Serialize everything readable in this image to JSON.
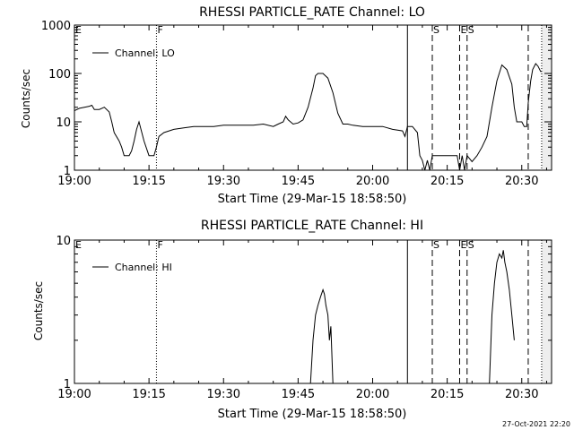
{
  "footer": {
    "timestamp": "27-Oct-2021 22:20"
  },
  "chart_data": [
    {
      "type": "line",
      "title": "RHESSI PARTICLE_RATE Channel: LO",
      "xlabel": "Start Time (29-Mar-15 18:58:50)",
      "ylabel": "Counts/sec",
      "yscale": "log",
      "ylim": [
        1,
        1000
      ],
      "xlim": [
        "19:00",
        "20:36"
      ],
      "ytick_labels": [
        "1",
        "10",
        "100",
        "1000"
      ],
      "yticks": [
        1,
        10,
        100,
        1000
      ],
      "xtick_labels": [
        "19:00",
        "19:15",
        "19:30",
        "19:45",
        "20:00",
        "20:15",
        "20:30"
      ],
      "xticks_min": [
        0,
        15,
        30,
        45,
        60,
        75,
        90
      ],
      "legend": {
        "position": "top-left",
        "entries": [
          "Channel: LO"
        ]
      },
      "grid": false,
      "markers": [
        {
          "label": "E",
          "x_min": 0,
          "style": "none"
        },
        {
          "label": "F",
          "x_min": 16.5,
          "style": "dotted"
        },
        {
          "label": "",
          "x_min": 67,
          "style": "solid"
        },
        {
          "label": "S",
          "x_min": 72,
          "style": "dashed"
        },
        {
          "label": "E",
          "x_min": 77.5,
          "style": "dashed"
        },
        {
          "label": "S",
          "x_min": 79,
          "style": "dashed"
        },
        {
          "label": "",
          "x_min": 91.3,
          "style": "dashed"
        },
        {
          "label": "",
          "x_min": 94,
          "style": "dotted"
        }
      ],
      "shade_from_min": 94,
      "series": [
        {
          "x_min": [
            0,
            1,
            2,
            3,
            3.5,
            4,
            5,
            6,
            7,
            7.5,
            8,
            9,
            9.5,
            10,
            11,
            11.5,
            12,
            12.5,
            13,
            14,
            15,
            16,
            16.5,
            17,
            18,
            20,
            22,
            24,
            26,
            28,
            30,
            32,
            34,
            36,
            38,
            40,
            41,
            42,
            42.5,
            43,
            44,
            45,
            46,
            47,
            48,
            48.5,
            49,
            50,
            51,
            52,
            53,
            54,
            55,
            56,
            58,
            60,
            62,
            64,
            66,
            66.5,
            67,
            68,
            69,
            69.5,
            70,
            70.5,
            71,
            71.5,
            72,
            73,
            74,
            75,
            76,
            77,
            77.5,
            78,
            78.5,
            79,
            80,
            81,
            82,
            83,
            84,
            85,
            86,
            87,
            88,
            88.5,
            89,
            90,
            90.5,
            91,
            91.3,
            91.8,
            92.2,
            92.8,
            93.3,
            93.8,
            94
          ],
          "y": [
            17,
            19,
            20,
            21,
            22,
            18,
            18,
            20,
            16,
            10,
            6,
            4,
            3,
            2,
            2,
            2.5,
            4,
            7,
            10,
            4,
            2,
            2,
            3,
            5,
            6,
            7,
            7.5,
            8,
            8,
            8,
            8.5,
            8.5,
            8.5,
            8.5,
            9,
            8,
            9,
            10,
            13,
            11,
            9,
            9.5,
            11,
            20,
            50,
            90,
            100,
            100,
            80,
            40,
            15,
            9,
            9,
            8.5,
            8,
            8,
            8,
            7,
            6.5,
            5,
            8,
            8,
            6,
            2,
            1.6,
            1,
            1.6,
            1,
            2,
            2,
            2,
            2,
            2,
            2,
            1,
            2,
            1,
            2,
            1.5,
            2,
            3,
            5,
            20,
            70,
            150,
            120,
            60,
            20,
            10,
            10,
            8,
            8,
            25,
            70,
            120,
            160,
            140,
            110,
            110
          ]
        }
      ]
    },
    {
      "type": "line",
      "title": "RHESSI PARTICLE_RATE Channel: HI",
      "xlabel": "Start Time (29-Mar-15 18:58:50)",
      "ylabel": "Counts/sec",
      "yscale": "log",
      "ylim": [
        1,
        10
      ],
      "xlim": [
        "19:00",
        "20:36"
      ],
      "ytick_labels": [
        "1",
        "10"
      ],
      "yticks": [
        1,
        10
      ],
      "xtick_labels": [
        "19:00",
        "19:15",
        "19:30",
        "19:45",
        "20:00",
        "20:15",
        "20:30"
      ],
      "xticks_min": [
        0,
        15,
        30,
        45,
        60,
        75,
        90
      ],
      "legend": {
        "position": "top-left",
        "entries": [
          "Channel: HI"
        ]
      },
      "grid": false,
      "markers": [
        {
          "label": "E",
          "x_min": 0,
          "style": "none"
        },
        {
          "label": "F",
          "x_min": 16.5,
          "style": "dotted"
        },
        {
          "label": "",
          "x_min": 67,
          "style": "solid"
        },
        {
          "label": "S",
          "x_min": 72,
          "style": "dashed"
        },
        {
          "label": "E",
          "x_min": 77.5,
          "style": "dashed"
        },
        {
          "label": "S",
          "x_min": 79,
          "style": "dashed"
        },
        {
          "label": "",
          "x_min": 91.3,
          "style": "dashed"
        },
        {
          "label": "",
          "x_min": 94,
          "style": "dotted"
        }
      ],
      "shade_from_min": 94,
      "series": [
        {
          "segments": [
            {
              "x_min": [
                47.5,
                48,
                48.5,
                49,
                49.5,
                50,
                50.3,
                50.6,
                51,
                51.3,
                51.6,
                52
              ],
              "y": [
                1,
                2,
                3,
                3.5,
                4,
                4.5,
                4.2,
                3.5,
                3,
                2,
                2.5,
                1
              ]
            },
            {
              "x_min": [
                83.5,
                84,
                84.5,
                85,
                85.5,
                86,
                86.3,
                86.6,
                87,
                87.5,
                88,
                88.5
              ],
              "y": [
                1,
                3,
                5,
                7,
                8,
                7.5,
                8.5,
                7,
                6,
                4.5,
                3,
                2
              ]
            }
          ]
        }
      ]
    }
  ]
}
